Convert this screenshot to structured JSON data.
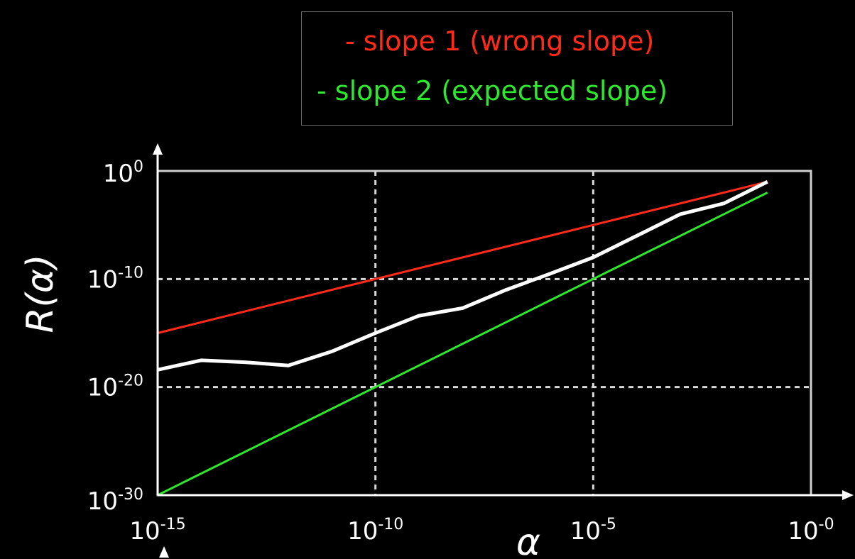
{
  "chart_data": {
    "type": "line",
    "xscale": "log",
    "yscale": "log",
    "xlim": [
      1e-15,
      1.0
    ],
    "ylim": [
      1e-30,
      1.0
    ],
    "xlabel": "α",
    "ylabel": "R(α)",
    "xticks": [
      {
        "value": 1e-15,
        "label": "10",
        "exp": "-15"
      },
      {
        "value": 1e-10,
        "label": "10",
        "exp": "-10"
      },
      {
        "value": 1e-05,
        "label": "10",
        "exp": "-5"
      },
      {
        "value": 1.0,
        "label": "10",
        "exp": "-0"
      }
    ],
    "yticks": [
      {
        "value": 1.0,
        "label": "10",
        "exp": "0"
      },
      {
        "value": 1e-10,
        "label": "10",
        "exp": "-10"
      },
      {
        "value": 1e-20,
        "label": "10",
        "exp": "-20"
      },
      {
        "value": 1e-30,
        "label": "10",
        "exp": "-30"
      }
    ],
    "grid": "dashed at 1e-10 and 1e-5 (x), 1e-10 and 1e-20 (y)",
    "legend_position": "top-center, above plot",
    "legend": [
      {
        "text": "- slope 1 (wrong slope)",
        "color": "#ff2a1a"
      },
      {
        "text": "- slope 2 (expected slope)",
        "color": "#2ee82e"
      }
    ],
    "series": [
      {
        "name": "slope 1 (wrong slope)",
        "color": "#ff2a1a",
        "x": [
          1e-15,
          1e-10,
          1e-05,
          0.1
        ],
        "y": [
          1e-15,
          1e-10,
          1e-05,
          0.1
        ]
      },
      {
        "name": "slope 2 (expected slope)",
        "color": "#2ee82e",
        "x": [
          1e-15,
          1e-10,
          1e-05,
          0.1
        ],
        "y": [
          1e-30,
          1e-20,
          1e-10,
          0.01
        ]
      },
      {
        "color": "#ffffff",
        "x": [
          1e-15,
          1e-14,
          1e-13,
          1e-12,
          1e-11,
          1e-10,
          1e-09,
          1e-08,
          1e-07,
          1e-06,
          1e-05,
          0.0001,
          0.001,
          0.01,
          0.1
        ],
        "y": [
          4e-19,
          3e-18,
          2e-18,
          1e-18,
          2e-17,
          1e-15,
          4e-14,
          2e-13,
          1e-11,
          3e-10,
          1e-08,
          1e-06,
          0.0001,
          0.001,
          0.1
        ]
      }
    ]
  }
}
